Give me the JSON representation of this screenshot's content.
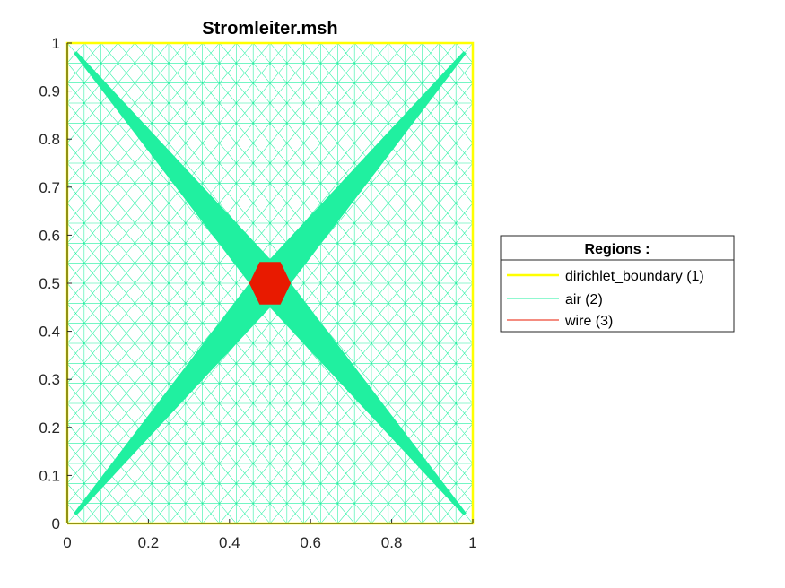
{
  "chart_data": {
    "type": "mesh",
    "title": "Stromleiter.msh",
    "xlabel": "",
    "ylabel": "",
    "xlim": [
      0,
      1
    ],
    "ylim": [
      0,
      1
    ],
    "xticks": [
      0,
      0.2,
      0.4,
      0.6,
      0.8,
      1
    ],
    "yticks": [
      0,
      0.1,
      0.2,
      0.3,
      0.4,
      0.5,
      0.6,
      0.7,
      0.8,
      0.9,
      1
    ],
    "xtick_labels": [
      "0",
      "0.2",
      "0.4",
      "0.6",
      "0.8",
      "1"
    ],
    "ytick_labels": [
      "0",
      "0.1",
      "0.2",
      "0.3",
      "0.4",
      "0.5",
      "0.6",
      "0.7",
      "0.8",
      "0.9",
      "1"
    ],
    "grid": false,
    "legend": {
      "title": "Regions :",
      "placement": "right",
      "entries": [
        {
          "label": "dirichlet_boundary (1)",
          "color": "#ffff00"
        },
        {
          "label": "air (2)",
          "color": "#20f0a0"
        },
        {
          "label": "wire (3)",
          "color": "#e81a00"
        }
      ]
    },
    "regions": [
      {
        "name": "dirichlet_boundary",
        "id": 1,
        "color": "#ffff00",
        "polygon": [
          [
            0,
            0
          ],
          [
            1,
            0
          ],
          [
            1,
            1
          ],
          [
            0,
            1
          ],
          [
            0,
            0
          ]
        ]
      },
      {
        "name": "air",
        "id": 2,
        "color": "#20f0a0",
        "diagonals": [
          [
            [
              0.02,
              0.98
            ],
            [
              0.98,
              0.02
            ]
          ],
          [
            [
              0.02,
              0.02
            ],
            [
              0.98,
              0.98
            ]
          ]
        ]
      },
      {
        "name": "wire",
        "id": 3,
        "color": "#e81a00",
        "polygon": [
          [
            0.55,
            0.5
          ],
          [
            0.525,
            0.4567
          ],
          [
            0.475,
            0.4567
          ],
          [
            0.45,
            0.5
          ],
          [
            0.475,
            0.5433
          ],
          [
            0.525,
            0.5433
          ]
        ]
      }
    ]
  }
}
